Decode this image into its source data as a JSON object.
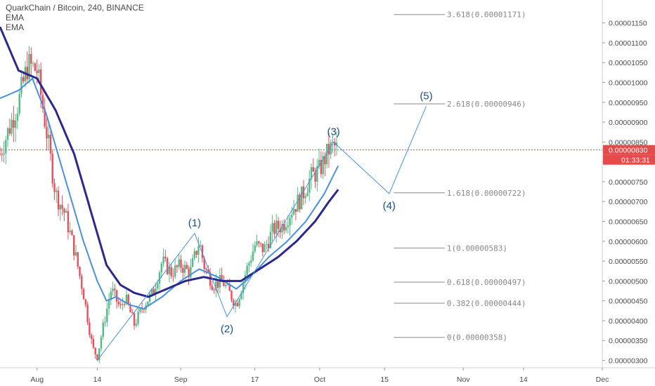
{
  "header": {
    "symbol": "QuarkChain / Bitcoin, 240, BINANCE",
    "indicators": [
      "EMA",
      "EMA"
    ]
  },
  "colors": {
    "bull": "#53b987",
    "bear": "#eb4d5c",
    "ema_fast": "#4a90d9",
    "ema_slow": "#2b2a8c",
    "wave": "#4a90d9",
    "wave_label": "#1c4f7c",
    "fib": "#888888",
    "price_tag": "#e64a4a"
  },
  "chart_data": {
    "type": "candlestick",
    "pair": "QuarkChain / Bitcoin",
    "timeframe": "240",
    "exchange": "BINANCE",
    "ylim": [
      2.85e-06,
      1.19e-05
    ],
    "y_ticks": [
      "0.00000300",
      "0.00000350",
      "0.00000400",
      "0.00000450",
      "0.00000500",
      "0.00000550",
      "0.00000600",
      "0.00000650",
      "0.00000700",
      "0.00000750",
      "0.00000800",
      "0.00000850",
      "0.00000900",
      "0.00000950",
      "0.00001000",
      "0.00001050",
      "0.00001100",
      "0.00001150"
    ],
    "x_ticks": [
      {
        "label": "Aug",
        "t": 6
      },
      {
        "label": "14",
        "t": 19
      },
      {
        "label": "Sep",
        "t": 37
      },
      {
        "label": "17",
        "t": 53
      },
      {
        "label": "Oct",
        "t": 67
      },
      {
        "label": "15",
        "t": 81
      },
      {
        "label": "Nov",
        "t": 98
      },
      {
        "label": "14",
        "t": 111
      },
      {
        "label": "Dec",
        "t": 128
      }
    ],
    "x_range": [
      -2,
      128
    ],
    "price_anchors": [
      [
        -2,
        8.2e-06
      ],
      [
        2,
        9.5e-06
      ],
      [
        4,
        1.045e-05
      ],
      [
        6,
        1.03e-05
      ],
      [
        8,
        8.8e-06
      ],
      [
        10,
        7.2e-06
      ],
      [
        12,
        6.7e-06
      ],
      [
        14,
        5.8e-06
      ],
      [
        16,
        4.7e-06
      ],
      [
        18,
        3.3e-06
      ],
      [
        19,
        3.1e-06
      ],
      [
        20,
        3.7e-06
      ],
      [
        22,
        4.8e-06
      ],
      [
        24,
        4.3e-06
      ],
      [
        25,
        4.6e-06
      ],
      [
        27,
        3.9e-06
      ],
      [
        29,
        4.4e-06
      ],
      [
        31,
        4.7e-06
      ],
      [
        33,
        5.5e-06
      ],
      [
        35,
        5.2e-06
      ],
      [
        37,
        5.4e-06
      ],
      [
        39,
        5.2e-06
      ],
      [
        41,
        6e-06
      ],
      [
        42,
        5.4e-06
      ],
      [
        44,
        4.9e-06
      ],
      [
        46,
        5e-06
      ],
      [
        48,
        4.6e-06
      ],
      [
        49,
        4.4e-06
      ],
      [
        51,
        5.2e-06
      ],
      [
        53,
        5.9e-06
      ],
      [
        55,
        5.8e-06
      ],
      [
        57,
        6.3e-06
      ],
      [
        59,
        6.4e-06
      ],
      [
        61,
        6.8e-06
      ],
      [
        63,
        7.1e-06
      ],
      [
        65,
        7.6e-06
      ],
      [
        67,
        7.8e-06
      ],
      [
        69,
        8.3e-06
      ],
      [
        70,
        8.4e-06
      ],
      [
        71,
        8.3e-06
      ]
    ],
    "ema_fast": [
      [
        -2,
        9.6e-06
      ],
      [
        2,
        9.8e-06
      ],
      [
        5,
        1.01e-05
      ],
      [
        8,
        9.2e-06
      ],
      [
        12,
        7.6e-06
      ],
      [
        16,
        6e-06
      ],
      [
        19,
        5e-06
      ],
      [
        21,
        4.5e-06
      ],
      [
        23,
        4.6e-06
      ],
      [
        26,
        4.4e-06
      ],
      [
        29,
        4.3e-06
      ],
      [
        33,
        4.6e-06
      ],
      [
        37,
        5e-06
      ],
      [
        41,
        5.3e-06
      ],
      [
        45,
        5.1e-06
      ],
      [
        49,
        4.8e-06
      ],
      [
        52,
        5.1e-06
      ],
      [
        56,
        5.6e-06
      ],
      [
        60,
        6e-06
      ],
      [
        64,
        6.5e-06
      ],
      [
        68,
        7.2e-06
      ],
      [
        71,
        7.9e-06
      ]
    ],
    "ema_slow": [
      [
        -2,
        1.14e-05
      ],
      [
        2,
        1.03e-05
      ],
      [
        6,
        1.01e-05
      ],
      [
        10,
        9.3e-06
      ],
      [
        14,
        8.2e-06
      ],
      [
        18,
        6.6e-06
      ],
      [
        21,
        5.4e-06
      ],
      [
        24,
        4.9e-06
      ],
      [
        27,
        4.7e-06
      ],
      [
        30,
        4.6e-06
      ],
      [
        34,
        4.8e-06
      ],
      [
        38,
        5e-06
      ],
      [
        42,
        5.1e-06
      ],
      [
        46,
        5e-06
      ],
      [
        50,
        5e-06
      ],
      [
        54,
        5.3e-06
      ],
      [
        58,
        5.6e-06
      ],
      [
        62,
        6e-06
      ],
      [
        66,
        6.5e-06
      ],
      [
        69,
        7e-06
      ],
      [
        71,
        7.3e-06
      ]
    ],
    "elliott_waves": [
      {
        "label": "",
        "t": 19,
        "price": 3e-06
      },
      {
        "label": "(1)",
        "t": 40,
        "price": 6.2e-06
      },
      {
        "label": "(2)",
        "t": 47,
        "price": 4.1e-06
      },
      {
        "label": "(3)",
        "t": 70,
        "price": 8.5e-06
      },
      {
        "label": "(4)",
        "t": 82,
        "price": 7.2e-06
      },
      {
        "label": "(5)",
        "t": 90,
        "price": 9.4e-06
      }
    ],
    "fib_levels": [
      {
        "label": "3.618(0.00001171)",
        "price": 1.171e-05
      },
      {
        "label": "2.618(0.00000946)",
        "price": 9.46e-06
      },
      {
        "label": "1.618(0.00000722)",
        "price": 7.22e-06
      },
      {
        "label": "1(0.00000583)",
        "price": 5.83e-06
      },
      {
        "label": "0.618(0.00000497)",
        "price": 4.97e-06
      },
      {
        "label": "0.382(0.00000444)",
        "price": 4.44e-06
      },
      {
        "label": "0(0.00000358)",
        "price": 3.58e-06
      }
    ],
    "last_price": {
      "value": "0.00000830",
      "price": 8.3e-06,
      "countdown": "01:33:31"
    }
  }
}
